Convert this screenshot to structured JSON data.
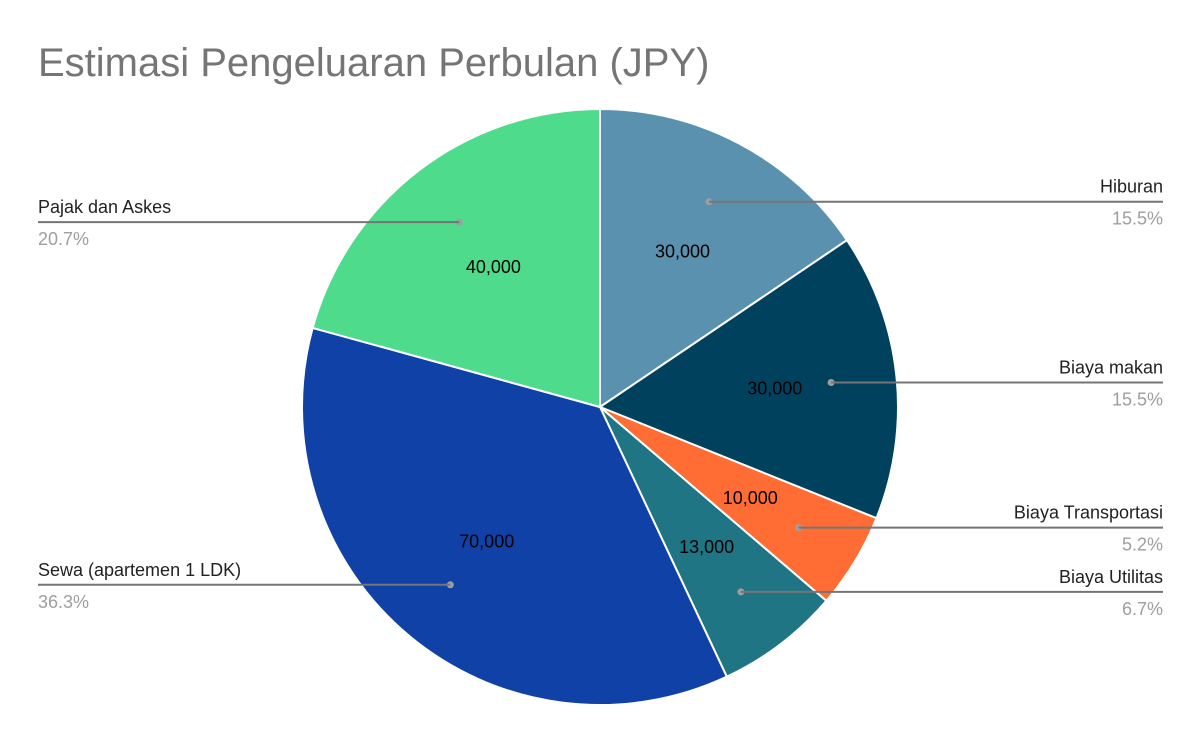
{
  "chart_data": {
    "type": "pie",
    "title": "Estimasi Pengeluaran Perbulan (JPY)",
    "start_angle_deg": 0,
    "direction": "clockwise",
    "slices": [
      {
        "label": "Hiburan",
        "value": 30000,
        "value_label": "30,000",
        "percent_label": "15.5%",
        "color": "#5a91af",
        "side": "right"
      },
      {
        "label": "Biaya makan",
        "value": 30000,
        "value_label": "30,000",
        "percent_label": "15.5%",
        "color": "#00425e",
        "side": "right"
      },
      {
        "label": "Biaya Transportasi",
        "value": 10000,
        "value_label": "10,000",
        "percent_label": "5.2%",
        "color": "#ff6d34",
        "side": "right"
      },
      {
        "label": "Biaya Utilitas",
        "value": 13000,
        "value_label": "13,000",
        "percent_label": "6.7%",
        "color": "#1f7584",
        "side": "right"
      },
      {
        "label": "Sewa (apartemen 1 LDK)",
        "value": 70000,
        "value_label": "70,000",
        "percent_label": "36.3%",
        "color": "#0f41a6",
        "side": "left"
      },
      {
        "label": "Pajak dan Askes",
        "value": 40000,
        "value_label": "40,000",
        "percent_label": "20.7%",
        "color": "#4edc8c",
        "side": "left"
      }
    ]
  }
}
